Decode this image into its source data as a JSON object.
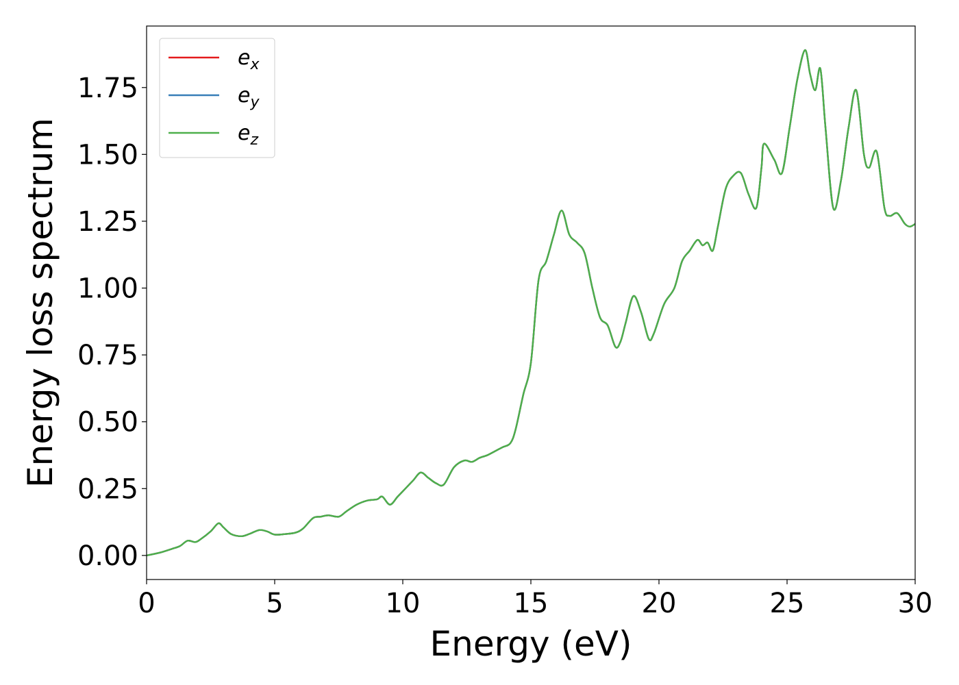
{
  "chart_data": {
    "type": "line",
    "title": "",
    "xlabel": "Energy (eV)",
    "ylabel": "Energy loss spectrum",
    "xlim": [
      0,
      30
    ],
    "ylim": [
      -0.09,
      1.98
    ],
    "xticks": [
      0,
      5,
      10,
      15,
      20,
      25,
      30
    ],
    "xtick_labels": [
      "0",
      "5",
      "10",
      "15",
      "20",
      "25",
      "30"
    ],
    "yticks": [
      0.0,
      0.25,
      0.5,
      0.75,
      1.0,
      1.25,
      1.5,
      1.75
    ],
    "ytick_labels": [
      "0.00",
      "0.25",
      "0.50",
      "0.75",
      "1.00",
      "1.25",
      "1.50",
      "1.75"
    ],
    "grid": false,
    "legend": {
      "position": "top-left",
      "entries": [
        {
          "base": "e",
          "sub": "x"
        },
        {
          "base": "e",
          "sub": "y"
        },
        {
          "base": "e",
          "sub": "z"
        }
      ]
    },
    "colors": {
      "e_x": "#e41a1c",
      "e_y": "#377eb8",
      "e_z": "#4daf4a"
    },
    "x": [
      0.0,
      0.5,
      1.0,
      1.3,
      1.6,
      1.9,
      2.1,
      2.5,
      2.8,
      3.0,
      3.3,
      3.7,
      4.0,
      4.4,
      4.7,
      5.0,
      5.4,
      5.8,
      6.1,
      6.5,
      6.8,
      7.1,
      7.5,
      7.8,
      8.2,
      8.6,
      9.0,
      9.2,
      9.5,
      9.8,
      10.1,
      10.4,
      10.7,
      11.0,
      11.3,
      11.6,
      12.0,
      12.4,
      12.7,
      13.0,
      13.3,
      13.6,
      13.9,
      14.2,
      14.4,
      14.7,
      15.0,
      15.3,
      15.6,
      15.9,
      16.2,
      16.5,
      16.8,
      17.1,
      17.4,
      17.7,
      18.0,
      18.3,
      18.5,
      18.7,
      19.0,
      19.3,
      19.6,
      19.8,
      20.2,
      20.6,
      20.9,
      21.2,
      21.5,
      21.7,
      21.9,
      22.1,
      22.3,
      22.6,
      22.9,
      23.2,
      23.5,
      23.8,
      24.0,
      24.1,
      24.5,
      24.8,
      25.1,
      25.4,
      25.7,
      25.9,
      26.1,
      26.3,
      26.5,
      26.8,
      27.1,
      27.4,
      27.7,
      28.0,
      28.2,
      28.5,
      28.8,
      29.0,
      29.3,
      29.6,
      29.8,
      30.0
    ],
    "series": [
      {
        "name": "e_x",
        "values": [
          0.0,
          0.01,
          0.025,
          0.035,
          0.055,
          0.05,
          0.06,
          0.09,
          0.12,
          0.105,
          0.08,
          0.072,
          0.08,
          0.095,
          0.09,
          0.078,
          0.08,
          0.085,
          0.1,
          0.14,
          0.145,
          0.15,
          0.145,
          0.165,
          0.19,
          0.205,
          0.21,
          0.22,
          0.19,
          0.22,
          0.25,
          0.28,
          0.31,
          0.29,
          0.27,
          0.265,
          0.33,
          0.355,
          0.35,
          0.365,
          0.375,
          0.39,
          0.405,
          0.42,
          0.47,
          0.6,
          0.72,
          1.03,
          1.1,
          1.2,
          1.29,
          1.2,
          1.17,
          1.13,
          1.0,
          0.89,
          0.86,
          0.78,
          0.8,
          0.87,
          0.97,
          0.91,
          0.81,
          0.83,
          0.94,
          1.0,
          1.1,
          1.14,
          1.18,
          1.16,
          1.17,
          1.14,
          1.23,
          1.37,
          1.42,
          1.43,
          1.35,
          1.3,
          1.45,
          1.54,
          1.48,
          1.43,
          1.6,
          1.78,
          1.89,
          1.8,
          1.74,
          1.82,
          1.6,
          1.3,
          1.4,
          1.6,
          1.74,
          1.5,
          1.45,
          1.51,
          1.3,
          1.27,
          1.28,
          1.24,
          1.23,
          1.24
        ]
      },
      {
        "name": "e_y",
        "values": [
          0.0,
          0.01,
          0.025,
          0.035,
          0.055,
          0.05,
          0.06,
          0.09,
          0.12,
          0.105,
          0.08,
          0.072,
          0.08,
          0.095,
          0.09,
          0.078,
          0.08,
          0.085,
          0.1,
          0.14,
          0.145,
          0.15,
          0.145,
          0.165,
          0.19,
          0.205,
          0.21,
          0.22,
          0.19,
          0.22,
          0.25,
          0.28,
          0.31,
          0.29,
          0.27,
          0.265,
          0.33,
          0.355,
          0.35,
          0.365,
          0.375,
          0.39,
          0.405,
          0.42,
          0.47,
          0.6,
          0.72,
          1.03,
          1.1,
          1.2,
          1.29,
          1.2,
          1.17,
          1.13,
          1.0,
          0.89,
          0.86,
          0.78,
          0.8,
          0.87,
          0.97,
          0.91,
          0.81,
          0.83,
          0.94,
          1.0,
          1.1,
          1.14,
          1.18,
          1.16,
          1.17,
          1.14,
          1.23,
          1.37,
          1.42,
          1.43,
          1.35,
          1.3,
          1.45,
          1.54,
          1.48,
          1.43,
          1.6,
          1.78,
          1.89,
          1.8,
          1.74,
          1.82,
          1.6,
          1.3,
          1.4,
          1.6,
          1.74,
          1.5,
          1.45,
          1.51,
          1.3,
          1.27,
          1.28,
          1.24,
          1.23,
          1.24
        ]
      },
      {
        "name": "e_z",
        "values": [
          0.0,
          0.01,
          0.025,
          0.035,
          0.055,
          0.05,
          0.06,
          0.09,
          0.12,
          0.105,
          0.08,
          0.072,
          0.08,
          0.095,
          0.09,
          0.078,
          0.08,
          0.085,
          0.1,
          0.14,
          0.145,
          0.15,
          0.145,
          0.165,
          0.19,
          0.205,
          0.21,
          0.22,
          0.19,
          0.22,
          0.25,
          0.28,
          0.31,
          0.29,
          0.27,
          0.265,
          0.33,
          0.355,
          0.35,
          0.365,
          0.375,
          0.39,
          0.405,
          0.42,
          0.47,
          0.6,
          0.72,
          1.03,
          1.1,
          1.2,
          1.29,
          1.2,
          1.17,
          1.13,
          1.0,
          0.89,
          0.86,
          0.78,
          0.8,
          0.87,
          0.97,
          0.91,
          0.81,
          0.83,
          0.94,
          1.0,
          1.1,
          1.14,
          1.18,
          1.16,
          1.17,
          1.14,
          1.23,
          1.37,
          1.42,
          1.43,
          1.35,
          1.3,
          1.45,
          1.54,
          1.48,
          1.43,
          1.6,
          1.78,
          1.89,
          1.8,
          1.74,
          1.82,
          1.6,
          1.3,
          1.4,
          1.6,
          1.74,
          1.5,
          1.45,
          1.51,
          1.3,
          1.27,
          1.28,
          1.24,
          1.23,
          1.24
        ]
      }
    ]
  }
}
